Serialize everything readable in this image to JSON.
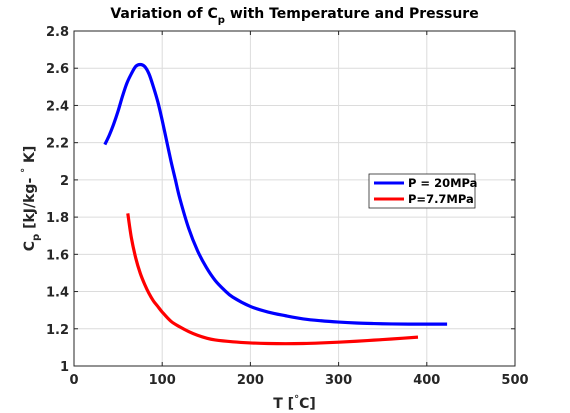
{
  "chart_data": {
    "type": "line",
    "title": {
      "main": "Variation of C",
      "sub": "p",
      "rest": " with Temperature and Pressure"
    },
    "xlabel": {
      "pre": "T [",
      "sup": "°",
      "post": "C]"
    },
    "ylabel": {
      "main": "C",
      "sub": "p",
      "mid": " [kJ/kg- ",
      "sup": "°",
      "post": " K]"
    },
    "xlim": [
      0,
      500
    ],
    "ylim": [
      1,
      2.8
    ],
    "xticks": [
      0,
      100,
      200,
      300,
      400,
      500
    ],
    "yticks": [
      1,
      1.2,
      1.4,
      1.6,
      1.8,
      2,
      2.2,
      2.4,
      2.6,
      2.8
    ],
    "ytick_labels": [
      "1",
      "1.2",
      "1.4",
      "1.6",
      "1.8",
      "2",
      "2.2",
      "2.4",
      "2.6",
      "2.8"
    ],
    "grid": true,
    "legend_position": "right",
    "series": [
      {
        "name": "P = 20MPa",
        "color": "#0000ff",
        "x": [
          35,
          40,
          45,
          50,
          55,
          60,
          65,
          70,
          75,
          80,
          85,
          90,
          95,
          100,
          105,
          110,
          115,
          120,
          130,
          140,
          150,
          160,
          170,
          180,
          200,
          220,
          240,
          260,
          280,
          300,
          320,
          340,
          360,
          380,
          400,
          423
        ],
        "y": [
          2.19,
          2.24,
          2.3,
          2.37,
          2.45,
          2.52,
          2.57,
          2.61,
          2.62,
          2.61,
          2.57,
          2.5,
          2.42,
          2.32,
          2.21,
          2.1,
          2.0,
          1.9,
          1.74,
          1.62,
          1.53,
          1.46,
          1.41,
          1.37,
          1.32,
          1.29,
          1.27,
          1.253,
          1.243,
          1.236,
          1.231,
          1.228,
          1.226,
          1.225,
          1.225,
          1.225
        ]
      },
      {
        "name": "P=7.7MPa",
        "color": "#ff0000",
        "x": [
          61,
          65,
          70,
          75,
          80,
          85,
          90,
          95,
          100,
          110,
          120,
          130,
          140,
          150,
          160,
          180,
          200,
          220,
          240,
          260,
          280,
          300,
          320,
          340,
          360,
          390
        ],
        "y": [
          1.82,
          1.69,
          1.58,
          1.5,
          1.44,
          1.39,
          1.35,
          1.32,
          1.29,
          1.24,
          1.21,
          1.185,
          1.165,
          1.15,
          1.14,
          1.13,
          1.124,
          1.121,
          1.12,
          1.121,
          1.124,
          1.128,
          1.133,
          1.139,
          1.145,
          1.155
        ]
      }
    ]
  }
}
